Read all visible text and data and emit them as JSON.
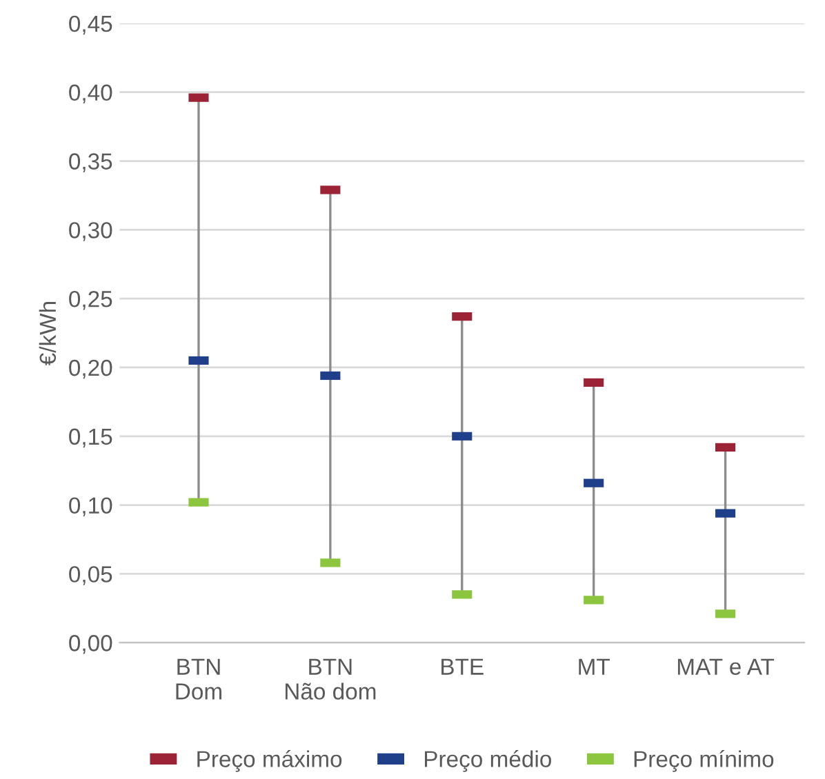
{
  "chart_data": {
    "type": "scatter",
    "ylabel": "€/kWh",
    "categories": [
      "BTN\nDom",
      "BTN\nNão dom",
      "BTE",
      "MT",
      "MAT e AT"
    ],
    "series": [
      {
        "name": "Preço máximo",
        "color": "#9b2335",
        "values": [
          0.396,
          0.329,
          0.237,
          0.189,
          0.142
        ]
      },
      {
        "name": "Preço médio",
        "color": "#203f8a",
        "values": [
          0.205,
          0.194,
          0.15,
          0.116,
          0.094
        ]
      },
      {
        "name": "Preço mínimo",
        "color": "#8cc63e",
        "values": [
          0.102,
          0.058,
          0.035,
          0.031,
          0.021
        ]
      }
    ],
    "ylim": [
      0,
      0.45
    ],
    "yticks": [
      {
        "value": 0,
        "label": "0,00"
      },
      {
        "value": 0.05,
        "label": "0,05"
      },
      {
        "value": 0.1,
        "label": "0,10"
      },
      {
        "value": 0.15,
        "label": "0,15"
      },
      {
        "value": 0.2,
        "label": "0,20"
      },
      {
        "value": 0.25,
        "label": "0,25"
      },
      {
        "value": 0.3,
        "label": "0,30"
      },
      {
        "value": 0.35,
        "label": "0,35"
      },
      {
        "value": 0.4,
        "label": "0,40"
      },
      {
        "value": 0.45,
        "label": "0,45"
      }
    ],
    "grid": "y",
    "legend": "bottom"
  }
}
